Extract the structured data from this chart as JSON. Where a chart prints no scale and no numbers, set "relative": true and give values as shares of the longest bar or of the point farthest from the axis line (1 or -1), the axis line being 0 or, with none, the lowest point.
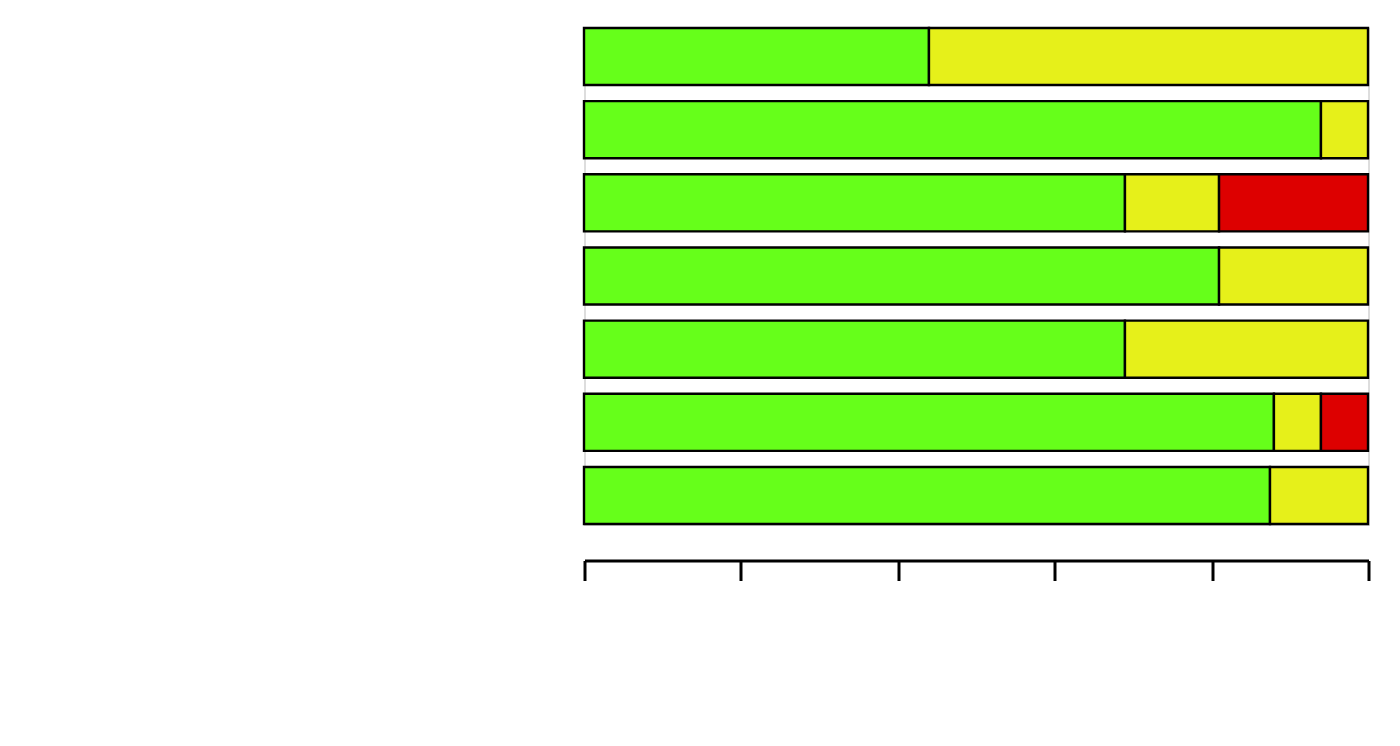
{
  "chart_data": {
    "type": "bar",
    "orientation": "horizontal",
    "stacked": true,
    "relative": true,
    "categories": [
      null,
      null,
      null,
      null,
      null,
      null,
      null
    ],
    "series": [
      {
        "color": "#66ff1a",
        "values": [
          0.44,
          0.94,
          0.69,
          0.81,
          0.69,
          0.88,
          0.875
        ]
      },
      {
        "color": "#e6f01a",
        "values": [
          0.56,
          0.06,
          0.12,
          0.19,
          0.31,
          0.06,
          0.125
        ]
      },
      {
        "color": "#dd0000",
        "values": [
          null,
          null,
          0.19,
          null,
          null,
          0.06,
          null
        ]
      }
    ],
    "grid": false,
    "tick_labels": false
  }
}
